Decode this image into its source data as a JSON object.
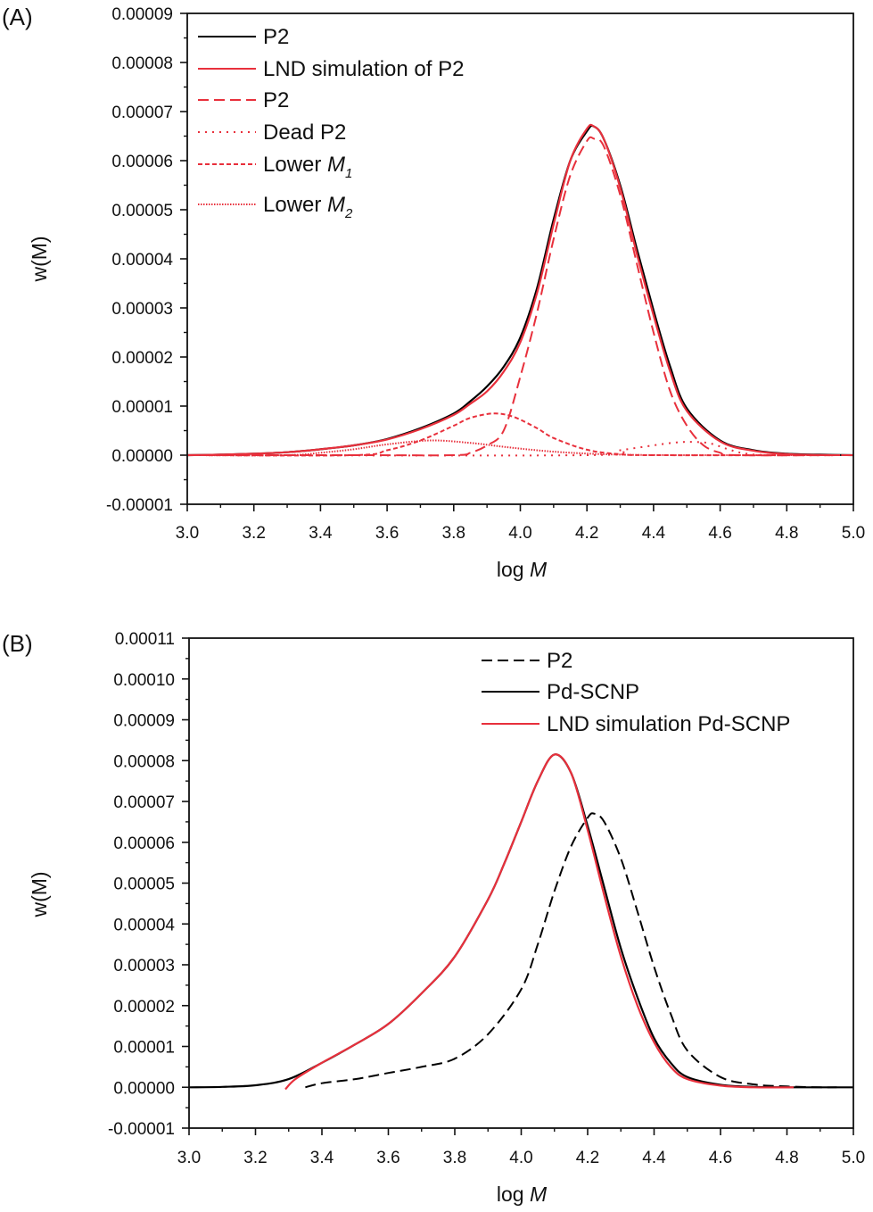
{
  "chart_data": [
    {
      "panel_label": "(A)",
      "type": "line",
      "xlabel": "log M",
      "ylabel": "w(M)",
      "xlim": [
        3.0,
        5.0
      ],
      "ylim": [
        -1e-05,
        9e-05
      ],
      "xticks": [
        "3.0",
        "3.2",
        "3.4",
        "3.6",
        "3.8",
        "4.0",
        "4.2",
        "4.4",
        "4.6",
        "4.8",
        "5.0"
      ],
      "yticks": [
        "-0.00001",
        "0.00000",
        "0.00001",
        "0.00002",
        "0.00003",
        "0.00004",
        "0.00005",
        "0.00006",
        "0.00007",
        "0.00008",
        "0.00009"
      ],
      "grid": false,
      "legend_position": "top-left",
      "series": [
        {
          "name": "P2",
          "color": "#000000",
          "style": "solid",
          "x": [
            3.0,
            3.1,
            3.2,
            3.3,
            3.4,
            3.5,
            3.6,
            3.7,
            3.8,
            3.85,
            3.9,
            3.95,
            4.0,
            4.05,
            4.1,
            4.15,
            4.2,
            4.22,
            4.25,
            4.3,
            4.35,
            4.4,
            4.45,
            4.5,
            4.6,
            4.7,
            4.8,
            4.9,
            5.0
          ],
          "y": [
            0,
            1e-07,
            3e-07,
            6e-07,
            1.2e-06,
            2e-06,
            3.3e-06,
            5.5e-06,
            8.5e-06,
            1.1e-05,
            1.4e-05,
            1.8e-05,
            2.4e-05,
            3.4e-05,
            4.8e-05,
            6e-05,
            6.6e-05,
            6.7e-05,
            6.45e-05,
            5.5e-05,
            4.2e-05,
            2.95e-05,
            1.8e-05,
            9.5e-06,
            3e-06,
            1e-06,
            3e-07,
            1e-07,
            0
          ]
        },
        {
          "name": "LND simulation of P2",
          "color": "#e8303c",
          "style": "solid",
          "x": [
            3.0,
            3.1,
            3.2,
            3.3,
            3.4,
            3.5,
            3.6,
            3.7,
            3.8,
            3.85,
            3.9,
            3.95,
            4.0,
            4.05,
            4.1,
            4.15,
            4.2,
            4.22,
            4.25,
            4.3,
            4.35,
            4.4,
            4.45,
            4.5,
            4.6,
            4.7,
            4.8,
            4.93
          ],
          "y": [
            0,
            1e-07,
            3e-07,
            6e-07,
            1.2e-06,
            2e-06,
            3.2e-06,
            5.3e-06,
            8.2e-06,
            1.05e-05,
            1.3e-05,
            1.7e-05,
            2.3e-05,
            3.3e-05,
            4.7e-05,
            6e-05,
            6.65e-05,
            6.7e-05,
            6.45e-05,
            5.45e-05,
            4.1e-05,
            2.85e-05,
            1.7e-05,
            9e-06,
            2.8e-06,
            9e-07,
            2e-07,
            0
          ]
        },
        {
          "name": "P2",
          "color": "#e8303c",
          "style": "dashed",
          "x": [
            3.0,
            3.5,
            3.8,
            3.85,
            3.9,
            3.95,
            4.0,
            4.05,
            4.1,
            4.15,
            4.2,
            4.22,
            4.25,
            4.3,
            4.35,
            4.4,
            4.45,
            4.5,
            4.55,
            4.6,
            4.65,
            5.0
          ],
          "y": [
            0,
            0,
            0,
            5e-07,
            2e-06,
            5e-06,
            1.6e-05,
            2.9e-05,
            4.4e-05,
            5.7e-05,
            6.4e-05,
            6.45e-05,
            6.3e-05,
            5.3e-05,
            3.9e-05,
            2.5e-05,
            1.3e-05,
            6e-06,
            2e-06,
            5e-07,
            0,
            0
          ]
        },
        {
          "name": "Dead P2",
          "color": "#e8303c",
          "style": "dotted",
          "x": [
            3.0,
            4.2,
            4.3,
            4.4,
            4.47,
            4.52,
            4.57,
            4.62,
            4.67,
            4.75,
            5.0
          ],
          "y": [
            0,
            0,
            1e-06,
            2e-06,
            2.6e-06,
            2.7e-06,
            2.4e-06,
            1.3e-06,
            4e-07,
            0,
            0
          ]
        },
        {
          "name": "Lower M1",
          "color": "#e8303c",
          "style": "short-dash",
          "x": [
            3.0,
            3.5,
            3.6,
            3.7,
            3.8,
            3.85,
            3.92,
            3.98,
            4.05,
            4.1,
            4.2,
            4.3,
            4.4,
            5.0
          ],
          "y": [
            0,
            0,
            1e-06,
            3e-06,
            6e-06,
            7.6e-06,
            8.5e-06,
            7.8e-06,
            5.5e-06,
            3.5e-06,
            1.1e-06,
            2e-07,
            0,
            0
          ]
        },
        {
          "name": "Lower M2",
          "color": "#e8303c",
          "style": "dense-dot",
          "x": [
            3.0,
            3.3,
            3.4,
            3.5,
            3.6,
            3.73,
            3.85,
            3.95,
            4.05,
            4.15,
            4.3,
            4.5,
            5.0
          ],
          "y": [
            0,
            0,
            5e-07,
            1.2e-06,
            2.2e-06,
            3e-06,
            2.5e-06,
            1.7e-06,
            1e-06,
            5e-07,
            1e-07,
            0,
            0
          ]
        }
      ],
      "legend": [
        {
          "label": "P2",
          "italic": "",
          "sub": ""
        },
        {
          "label": "LND simulation of P2",
          "italic": "",
          "sub": ""
        },
        {
          "label": "P2",
          "italic": "",
          "sub": ""
        },
        {
          "label": "Dead P2",
          "italic": "",
          "sub": ""
        },
        {
          "label": "Lower ",
          "italic": "M",
          "sub": "1"
        },
        {
          "label": "Lower ",
          "italic": "M",
          "sub": "2"
        }
      ]
    },
    {
      "panel_label": "(B)",
      "type": "line",
      "xlabel": "log M",
      "ylabel": "w(M)",
      "xlim": [
        3.0,
        5.0
      ],
      "ylim": [
        -1e-05,
        0.00011
      ],
      "xticks": [
        "3.0",
        "3.2",
        "3.4",
        "3.6",
        "3.8",
        "4.0",
        "4.2",
        "4.4",
        "4.6",
        "4.8",
        "5.0"
      ],
      "yticks": [
        "-0.00001",
        "0.00000",
        "0.00001",
        "0.00002",
        "0.00003",
        "0.00004",
        "0.00005",
        "0.00006",
        "0.00007",
        "0.00008",
        "0.00009",
        "0.00010",
        "0.00011"
      ],
      "grid": false,
      "legend_position": "top-right",
      "series": [
        {
          "name": "P2",
          "color": "#000000",
          "style": "dashed",
          "x": [
            3.35,
            3.4,
            3.5,
            3.6,
            3.7,
            3.8,
            3.9,
            4.0,
            4.05,
            4.1,
            4.15,
            4.2,
            4.22,
            4.25,
            4.3,
            4.35,
            4.4,
            4.45,
            4.5,
            4.6,
            4.7,
            4.8,
            4.9,
            4.95
          ],
          "y": [
            0,
            1e-06,
            2e-06,
            3.5e-06,
            5e-06,
            7e-06,
            1.3e-05,
            2.4e-05,
            3.5e-05,
            4.8e-05,
            5.9e-05,
            6.6e-05,
            6.7e-05,
            6.5e-05,
            5.6e-05,
            4.3e-05,
            2.95e-05,
            1.8e-05,
            9e-06,
            2.5e-06,
            7e-07,
            2e-07,
            0,
            0
          ]
        },
        {
          "name": "Pd-SCNP",
          "color": "#000000",
          "style": "solid",
          "x": [
            3.0,
            3.1,
            3.2,
            3.3,
            3.4,
            3.5,
            3.6,
            3.7,
            3.8,
            3.9,
            3.95,
            4.0,
            4.05,
            4.1,
            4.15,
            4.2,
            4.25,
            4.3,
            4.35,
            4.4,
            4.45,
            4.5,
            4.6,
            4.7,
            4.8,
            5.0
          ],
          "y": [
            0,
            1e-07,
            5e-07,
            2e-06,
            6e-06,
            1.05e-05,
            1.55e-05,
            2.3e-05,
            3.2e-05,
            4.6e-05,
            5.5e-05,
            6.5e-05,
            7.5e-05,
            8.15e-05,
            7.7e-05,
            6.4e-05,
            4.9e-05,
            3.4e-05,
            2.2e-05,
            1.2e-05,
            6e-06,
            2.5e-06,
            6e-07,
            1e-07,
            0,
            0
          ]
        },
        {
          "name": "LND simulation Pd-SCNP",
          "color": "#e8303c",
          "style": "solid",
          "x": [
            3.29,
            3.32,
            3.4,
            3.5,
            3.6,
            3.7,
            3.8,
            3.9,
            3.95,
            4.0,
            4.05,
            4.1,
            4.15,
            4.2,
            4.25,
            4.3,
            4.35,
            4.4,
            4.45,
            4.5,
            4.6,
            4.7,
            4.82
          ],
          "y": [
            -5e-07,
            2e-06,
            6e-06,
            1.05e-05,
            1.55e-05,
            2.3e-05,
            3.2e-05,
            4.6e-05,
            5.5e-05,
            6.5e-05,
            7.5e-05,
            8.15e-05,
            7.7e-05,
            6.3e-05,
            4.7e-05,
            3.2e-05,
            2e-05,
            1.1e-05,
            5e-06,
            2e-06,
            4e-07,
            0,
            0
          ]
        }
      ],
      "legend": [
        {
          "label": "P2",
          "italic": "",
          "sub": ""
        },
        {
          "label": "Pd-SCNP",
          "italic": "",
          "sub": ""
        },
        {
          "label": "LND simulation Pd-SCNP",
          "italic": "",
          "sub": ""
        }
      ]
    }
  ]
}
